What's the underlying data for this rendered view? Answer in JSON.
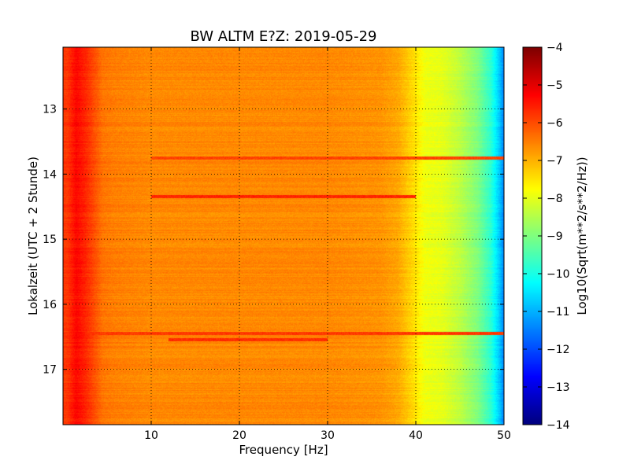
{
  "chart_data": {
    "type": "heatmap",
    "title": "BW ALTM E?Z: 2019-05-29",
    "xlabel": "Frequency [Hz]",
    "ylabel": "Lokalzeit (UTC + 2 Stunde)",
    "xlim": [
      0,
      50
    ],
    "ylim": [
      17.85,
      12.05
    ],
    "y_inverted": true,
    "xticks": [
      10,
      20,
      30,
      40,
      50
    ],
    "xtick_labels": [
      "10",
      "20",
      "30",
      "40",
      "50"
    ],
    "yticks": [
      13,
      14,
      15,
      16,
      17
    ],
    "ytick_labels": [
      "13",
      "14",
      "15",
      "16",
      "17"
    ],
    "grid": true,
    "colormap": "jet",
    "colorbar": {
      "label": "Log10(Sqrt(m**2/s**2/Hz))",
      "range": [
        -14,
        -4
      ],
      "ticks": [
        -4,
        -5,
        -6,
        -7,
        -8,
        -9,
        -10,
        -11,
        -12,
        -13,
        -14
      ],
      "tick_labels": [
        "−4",
        "−5",
        "−6",
        "−7",
        "−8",
        "−9",
        "−10",
        "−11",
        "−12",
        "−13",
        "−14"
      ]
    },
    "spectrum_profile": {
      "frequency_hz": [
        0.5,
        1.5,
        2.5,
        3.5,
        4.5,
        6,
        10,
        20,
        30,
        36,
        38,
        40,
        41,
        43,
        45,
        47,
        48.5,
        49.5,
        50
      ],
      "level": [
        -5.8,
        -5.3,
        -5.6,
        -6.0,
        -6.4,
        -6.5,
        -6.6,
        -6.6,
        -6.6,
        -6.7,
        -6.9,
        -7.5,
        -7.9,
        -8.0,
        -8.4,
        -9.0,
        -9.8,
        -10.8,
        -11.5
      ]
    },
    "noise_bands": [
      {
        "time": 13.75,
        "freq_range": [
          10,
          50
        ],
        "level": -5.9
      },
      {
        "time": 14.35,
        "freq_range": [
          10,
          40
        ],
        "level": -5.6
      },
      {
        "time": 16.45,
        "freq_range": [
          3,
          50
        ],
        "level": -5.8
      },
      {
        "time": 16.55,
        "freq_range": [
          12,
          30
        ],
        "level": -5.7
      }
    ]
  }
}
